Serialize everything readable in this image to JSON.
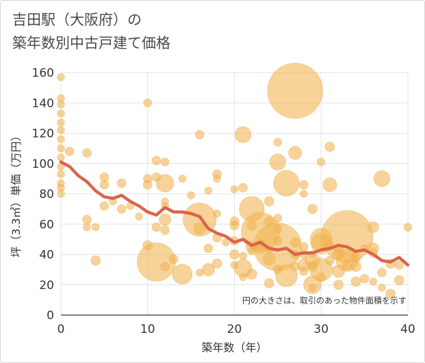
{
  "title": {
    "line1": "吉田駅（大阪府）の",
    "line2": "築年数別中古戸建て価格"
  },
  "chart_data": {
    "type": "scatter",
    "title": "吉田駅（大阪府）の築年数別中古戸建て価格",
    "xlabel": "築年数（年）",
    "ylabel": "坪（3.3㎡）単価（万円）",
    "xlim": [
      0,
      40
    ],
    "ylim": [
      0,
      160
    ],
    "xticks": [
      "0",
      "10",
      "20",
      "30",
      "40"
    ],
    "yticks": [
      "0",
      "20",
      "40",
      "60",
      "80",
      "100",
      "120",
      "140",
      "160"
    ],
    "note": "円の大きさは、取引のあった物件面積を示す",
    "colors": {
      "bubble": "#f1b450",
      "trend": "#d9654b",
      "grid": "#e3e3e3"
    },
    "bubbles": [
      [
        0,
        157,
        1
      ],
      [
        0,
        143,
        1
      ],
      [
        0,
        139,
        1
      ],
      [
        0,
        133,
        1
      ],
      [
        0,
        127,
        1
      ],
      [
        0,
        122,
        1
      ],
      [
        0,
        116,
        1
      ],
      [
        0,
        110,
        1
      ],
      [
        0,
        104,
        1
      ],
      [
        0,
        98,
        1
      ],
      [
        0,
        93,
        1
      ],
      [
        0,
        87,
        1
      ],
      [
        0,
        84,
        1
      ],
      [
        0,
        80,
        1
      ],
      [
        1,
        108,
        1.2
      ],
      [
        3,
        107,
        1.2
      ],
      [
        3,
        63,
        1.2
      ],
      [
        3,
        58,
        1
      ],
      [
        4,
        58,
        1
      ],
      [
        4,
        36,
        1.3
      ],
      [
        5,
        91,
        1.2
      ],
      [
        5,
        86,
        1.2
      ],
      [
        5,
        72,
        1.2
      ],
      [
        6,
        75,
        1
      ],
      [
        7,
        87,
        1.2
      ],
      [
        7,
        70,
        1.2
      ],
      [
        8,
        72,
        1
      ],
      [
        9,
        65,
        1
      ],
      [
        10,
        140,
        1.1
      ],
      [
        10,
        90,
        1.2
      ],
      [
        10,
        86,
        1.2
      ],
      [
        10,
        46,
        1.3
      ],
      [
        11,
        102,
        1.2
      ],
      [
        11,
        91,
        1.2
      ],
      [
        11,
        58,
        1.2
      ],
      [
        11,
        35,
        5.2
      ],
      [
        12,
        101,
        1.1
      ],
      [
        12,
        87,
        2.4
      ],
      [
        12,
        75,
        1
      ],
      [
        12,
        72,
        1
      ],
      [
        12,
        63,
        1.6
      ],
      [
        12,
        56,
        1.2
      ],
      [
        12,
        32,
        1.2
      ],
      [
        13,
        37,
        1.2
      ],
      [
        14,
        90,
        1
      ],
      [
        14,
        27,
        2.7
      ],
      [
        15,
        79,
        1
      ],
      [
        16,
        119,
        1.2
      ],
      [
        16,
        63,
        4.5
      ],
      [
        16,
        57,
        1.6
      ],
      [
        16,
        28,
        1
      ],
      [
        17,
        82,
        1
      ],
      [
        17,
        44,
        1.2
      ],
      [
        17,
        30,
        1.7
      ],
      [
        18,
        93,
        1.2
      ],
      [
        18,
        90,
        1
      ],
      [
        18,
        67,
        1
      ],
      [
        18,
        51,
        1.2
      ],
      [
        18,
        34,
        1.3
      ],
      [
        19,
        48,
        1
      ],
      [
        20,
        83,
        1
      ],
      [
        20,
        62,
        1.2
      ],
      [
        20,
        59,
        1.2
      ],
      [
        20,
        49,
        1.2
      ],
      [
        20,
        40,
        1.3
      ],
      [
        20,
        33,
        1
      ],
      [
        21,
        119,
        2.2
      ],
      [
        21,
        84,
        1.2
      ],
      [
        21,
        39,
        1
      ],
      [
        21,
        31,
        2.4
      ],
      [
        21,
        25,
        1
      ],
      [
        22,
        70,
        3.4
      ],
      [
        22,
        59,
        1.3
      ],
      [
        22,
        45,
        1.6
      ],
      [
        22,
        42,
        1
      ],
      [
        22,
        27,
        1.4
      ],
      [
        23,
        55,
        5.2
      ],
      [
        23,
        47,
        1.2
      ],
      [
        23,
        44,
        1.5
      ],
      [
        24,
        75,
        1.3
      ],
      [
        24,
        62,
        1.2
      ],
      [
        24,
        43,
        1
      ],
      [
        24,
        37,
        1.7
      ],
      [
        24,
        21,
        1.3
      ],
      [
        25,
        114,
        1.1
      ],
      [
        25,
        101,
        2.2
      ],
      [
        25,
        64,
        1.1
      ],
      [
        25,
        57,
        1.1
      ],
      [
        25,
        49,
        1.2
      ],
      [
        25,
        45,
        6.5
      ],
      [
        25,
        30,
        1.2
      ],
      [
        26,
        87,
        3.5
      ],
      [
        26,
        26,
        3
      ],
      [
        27,
        148,
        7.5
      ],
      [
        27,
        107,
        1.8
      ],
      [
        27,
        48,
        1.3
      ],
      [
        27,
        40,
        1.2
      ],
      [
        27,
        32,
        1.2
      ],
      [
        28,
        86,
        1.2
      ],
      [
        28,
        80,
        1
      ],
      [
        28,
        45,
        1.2
      ],
      [
        28,
        40,
        1.1
      ],
      [
        28,
        33,
        1.7
      ],
      [
        28,
        29,
        1.2
      ],
      [
        29,
        70,
        1.3
      ],
      [
        29,
        40,
        1
      ],
      [
        29,
        36,
        2
      ],
      [
        29,
        32,
        1.3
      ],
      [
        29,
        20,
        2.4
      ],
      [
        29,
        18,
        1
      ],
      [
        30,
        101,
        1.1
      ],
      [
        30,
        50,
        3
      ],
      [
        30,
        47,
        2.7
      ],
      [
        30,
        30,
        3.1
      ],
      [
        30,
        25,
        1.2
      ],
      [
        31,
        111,
        1.3
      ],
      [
        31,
        86,
        1.9
      ],
      [
        31,
        47,
        1
      ],
      [
        31,
        45,
        1
      ],
      [
        31,
        36,
        1.2
      ],
      [
        32,
        44,
        1.3
      ],
      [
        32,
        40,
        1.6
      ],
      [
        32,
        29,
        1.7
      ],
      [
        32,
        20,
        1.3
      ],
      [
        33,
        52,
        7
      ],
      [
        33,
        36,
        3
      ],
      [
        33,
        33,
        1.3
      ],
      [
        34,
        38,
        1.3
      ],
      [
        34,
        32,
        1.4
      ],
      [
        34,
        22,
        1.3
      ],
      [
        35,
        44,
        1
      ],
      [
        35,
        24,
        1.2
      ],
      [
        36,
        58,
        1.5
      ],
      [
        36,
        44,
        1.5
      ],
      [
        36,
        41,
        1.2
      ],
      [
        36,
        22,
        1
      ],
      [
        37,
        90,
        2.2
      ],
      [
        37,
        28,
        1.2
      ],
      [
        37,
        18,
        1
      ],
      [
        38,
        34,
        1.3
      ],
      [
        38,
        14,
        1.3
      ],
      [
        39,
        33,
        1.2
      ],
      [
        39,
        23,
        1.3
      ],
      [
        40,
        58,
        1.1
      ]
    ],
    "trend": {
      "x": [
        0,
        1,
        2,
        3,
        4,
        5,
        6,
        7,
        8,
        9,
        10,
        11,
        12,
        13,
        14,
        15,
        16,
        17,
        18,
        19,
        20,
        21,
        22,
        23,
        24,
        25,
        26,
        27,
        28,
        29,
        30,
        31,
        32,
        33,
        34,
        35,
        36,
        37,
        38,
        39,
        40
      ],
      "y": [
        101,
        98,
        92,
        88,
        82,
        78,
        77,
        79,
        75,
        72,
        68,
        66,
        71,
        68,
        68,
        67,
        65,
        57,
        54,
        52,
        48,
        50,
        46,
        48,
        44,
        43,
        44,
        40,
        41,
        41,
        43,
        44,
        46,
        45,
        42,
        43,
        40,
        36,
        35,
        38,
        33
      ]
    }
  }
}
